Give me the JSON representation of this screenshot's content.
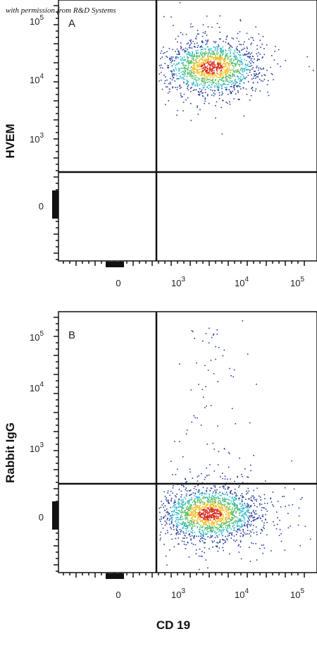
{
  "watermark": "with permission from R&D Systems",
  "x_axis_title": "CD 19",
  "panels": [
    {
      "label": "A",
      "y_axis_title": "HVEM",
      "y_ticks": [
        {
          "base": "10",
          "exp": "5"
        },
        {
          "base": "10",
          "exp": "4"
        },
        {
          "base": "10",
          "exp": "3"
        },
        {
          "base": "0"
        }
      ],
      "x_ticks": [
        {
          "base": "0"
        },
        {
          "base": "10",
          "exp": "3"
        },
        {
          "base": "10",
          "exp": "4"
        },
        {
          "base": "10",
          "exp": "5"
        }
      ]
    },
    {
      "label": "B",
      "y_axis_title": "Rabbit IgG",
      "y_ticks": [
        {
          "base": "10",
          "exp": "5"
        },
        {
          "base": "10",
          "exp": "4"
        },
        {
          "base": "10",
          "exp": "3"
        },
        {
          "base": "0"
        }
      ],
      "x_ticks": [
        {
          "base": "0"
        },
        {
          "base": "10",
          "exp": "3"
        },
        {
          "base": "10",
          "exp": "4"
        },
        {
          "base": "10",
          "exp": "5"
        }
      ]
    }
  ]
}
